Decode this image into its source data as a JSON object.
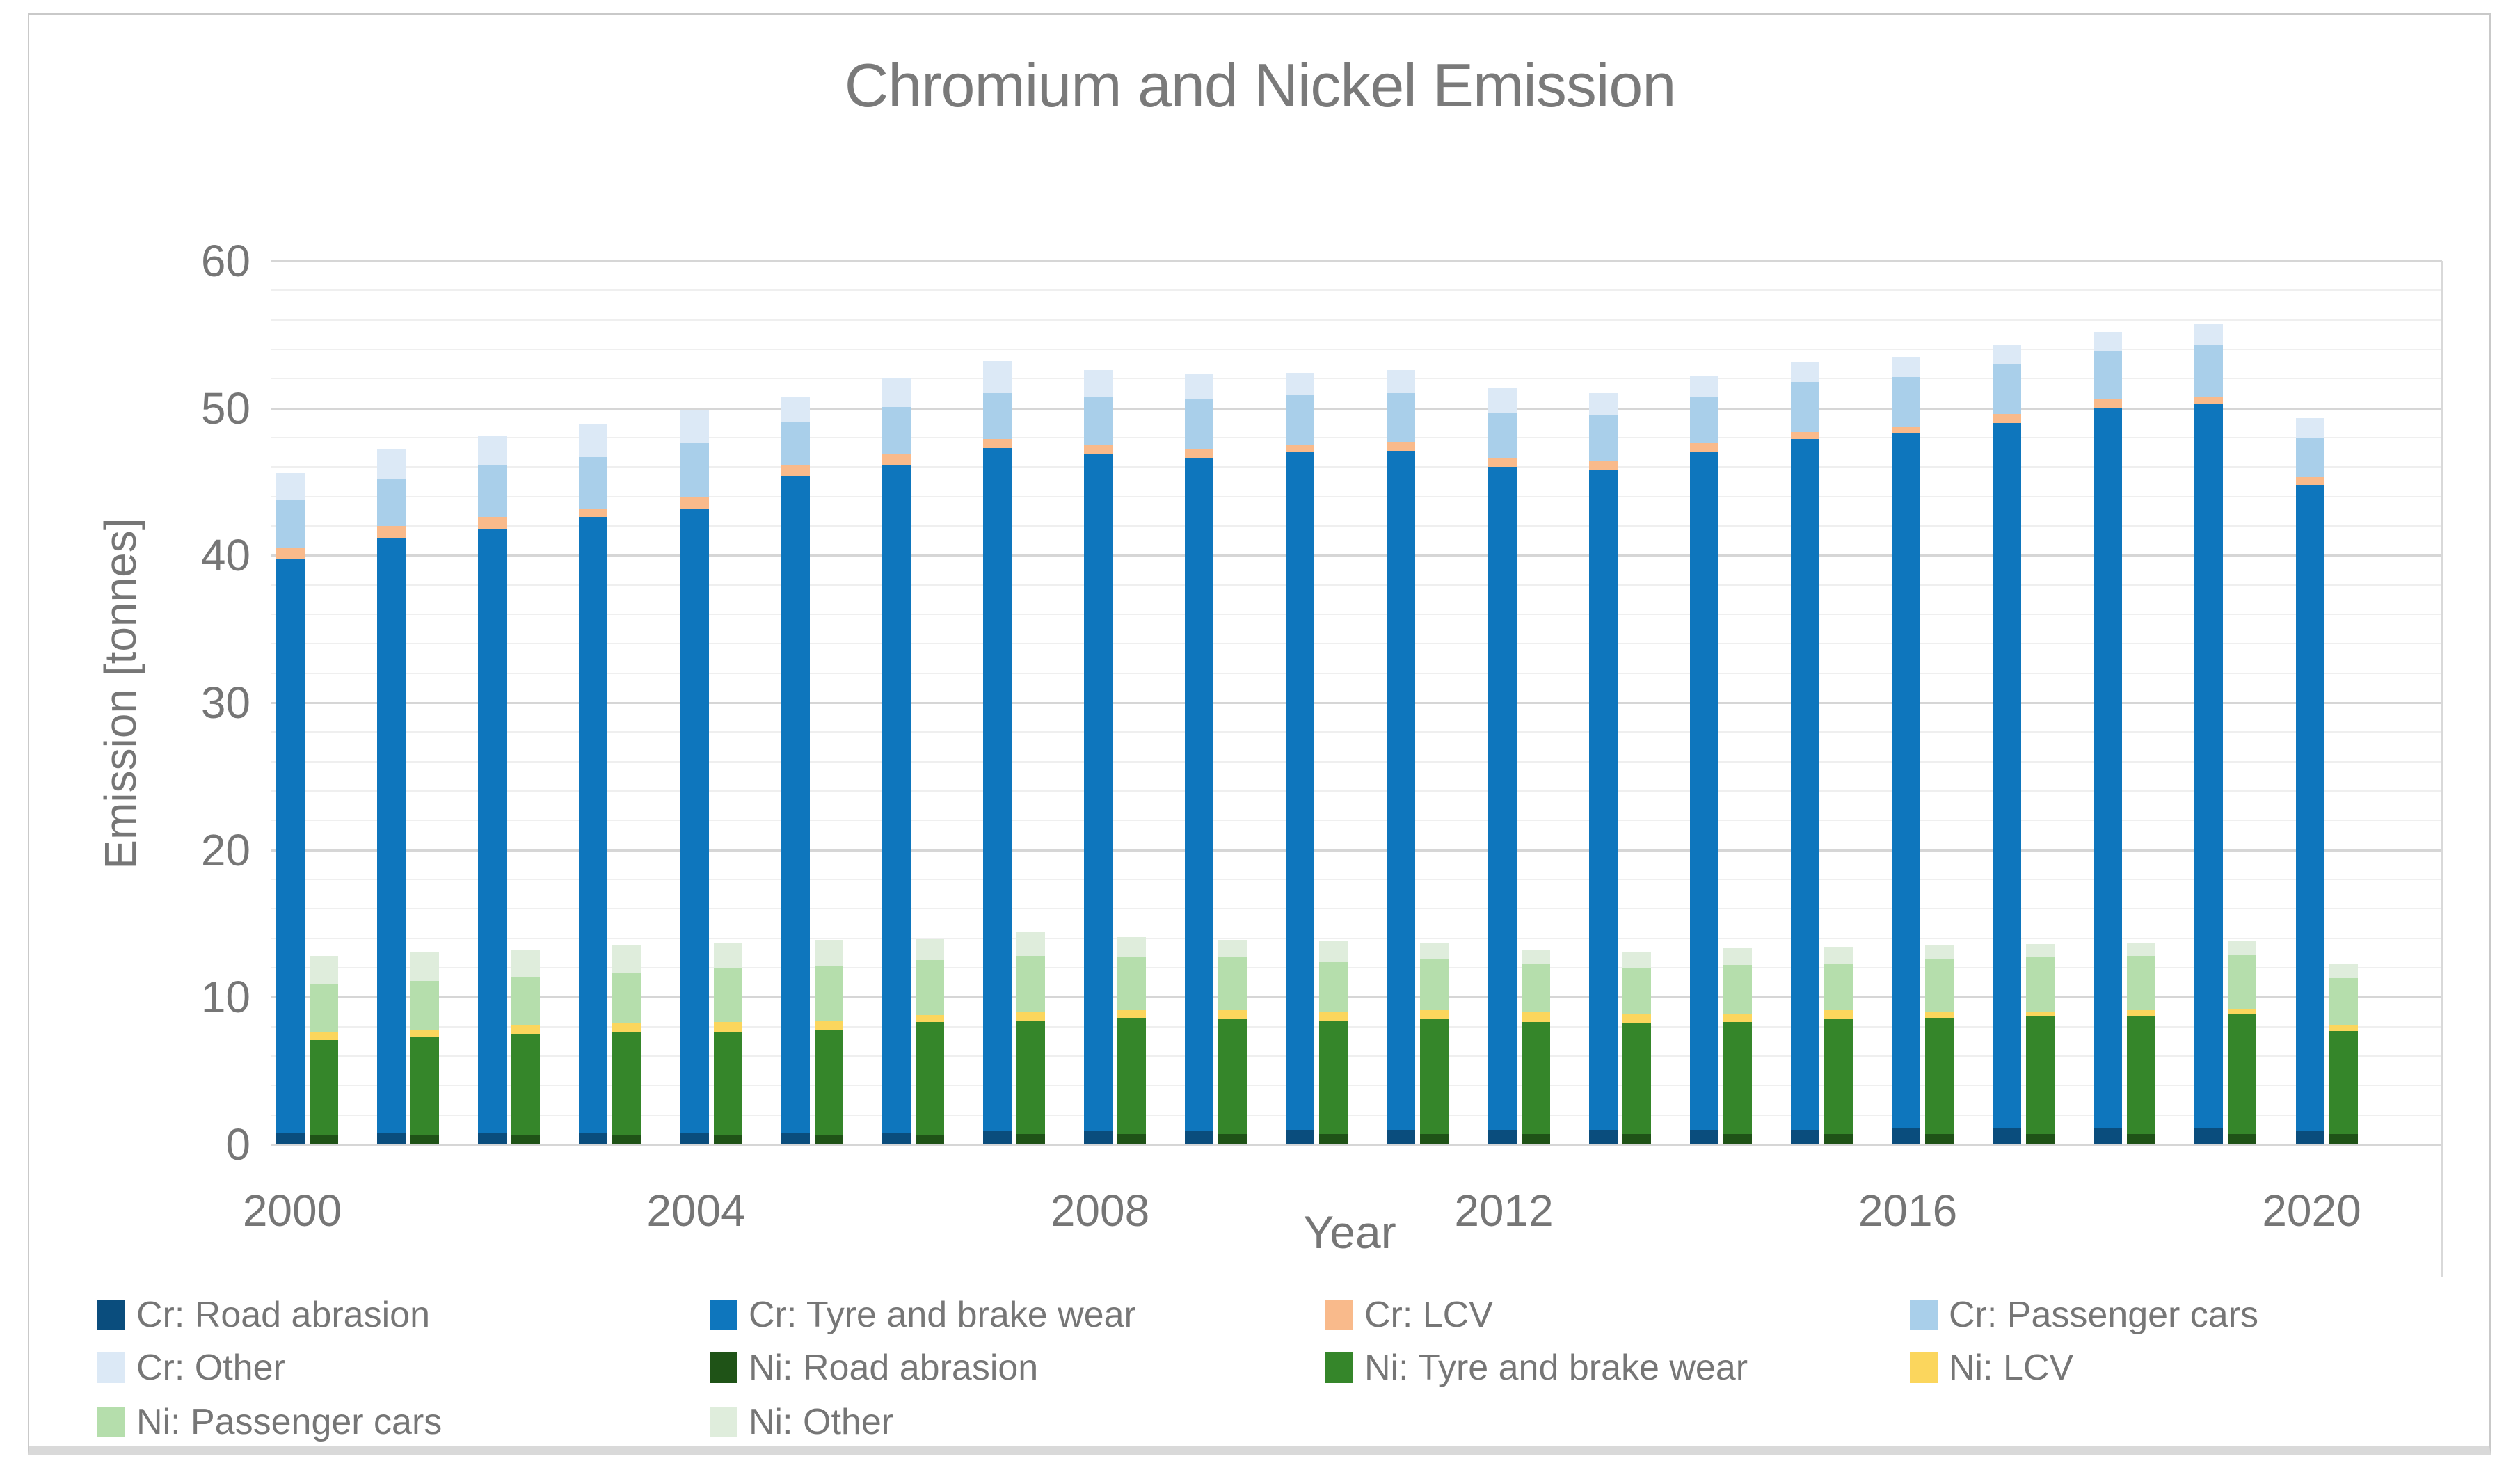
{
  "title": "Chromium and Nickel Emission",
  "y_axis": {
    "label": "Emission [tonnes]",
    "ticks": [
      0,
      10,
      20,
      30,
      40,
      50,
      60
    ],
    "minor_step": 2
  },
  "x_axis": {
    "label": "Year",
    "tick_years": [
      2000,
      2004,
      2008,
      2012,
      2016,
      2020
    ]
  },
  "colors": {
    "cr_road": "#0a4d7d",
    "cr_tyre": "#0e76bd",
    "cr_lcv": "#f9ba8b",
    "cr_passenger": "#a9cfea",
    "cr_other": "#dce9f6",
    "ni_road": "#1f5317",
    "ni_tyre": "#35862a",
    "ni_lcv": "#fbd65d",
    "ni_passenger": "#b5deac",
    "ni_other": "#dfeddc",
    "text_gray": "#767676",
    "grid_major": "#d6d6d6",
    "grid_minor": "#efefef"
  },
  "legend": [
    {
      "label": "Cr: Road abrasion",
      "color_key": "cr_road",
      "col": 0,
      "row": 0
    },
    {
      "label": "Cr: Tyre and brake wear",
      "color_key": "cr_tyre",
      "col": 1,
      "row": 0
    },
    {
      "label": "Cr: LCV",
      "color_key": "cr_lcv",
      "col": 2,
      "row": 0
    },
    {
      "label": "Cr: Passenger cars",
      "color_key": "cr_passenger",
      "col": 3,
      "row": 0
    },
    {
      "label": "Cr: Other",
      "color_key": "cr_other",
      "col": 0,
      "row": 1
    },
    {
      "label": "Ni: Road abrasion",
      "color_key": "ni_road",
      "col": 1,
      "row": 1
    },
    {
      "label": "Ni: Tyre and brake wear",
      "color_key": "ni_tyre",
      "col": 2,
      "row": 1
    },
    {
      "label": "Ni: LCV",
      "color_key": "ni_lcv",
      "col": 3,
      "row": 1
    },
    {
      "label": "Ni: Passenger cars",
      "color_key": "ni_passenger",
      "col": 0,
      "row": 2
    },
    {
      "label": "Ni: Other",
      "color_key": "ni_other",
      "col": 1,
      "row": 2
    }
  ],
  "chart_data": {
    "type": "bar",
    "stacked": true,
    "grouped_by": "year, two stacked bars per year (Cr and Ni)",
    "title": "Chromium and Nickel Emission",
    "xlabel": "Year",
    "ylabel": "Emission [tonnes]",
    "ylim": [
      0,
      60
    ],
    "grid": true,
    "legend_position": "bottom",
    "x": [
      2000,
      2001,
      2002,
      2003,
      2004,
      2005,
      2006,
      2007,
      2008,
      2009,
      2010,
      2011,
      2012,
      2013,
      2014,
      2015,
      2016,
      2017,
      2018,
      2019,
      2020
    ],
    "series": [
      {
        "name": "Cr: Road abrasion",
        "bar": "Cr",
        "color_key": "cr_road",
        "values": [
          0.8,
          0.8,
          0.8,
          0.8,
          0.8,
          0.8,
          0.8,
          0.9,
          0.9,
          0.9,
          1.0,
          1.0,
          1.0,
          1.0,
          1.0,
          1.0,
          1.1,
          1.1,
          1.1,
          1.1,
          0.9
        ]
      },
      {
        "name": "Cr: Tyre and brake wear",
        "bar": "Cr",
        "color_key": "cr_tyre",
        "values": [
          39.0,
          40.4,
          41.0,
          41.8,
          42.4,
          44.6,
          45.3,
          46.4,
          46.0,
          45.7,
          46.0,
          46.1,
          45.0,
          44.8,
          46.0,
          46.9,
          47.2,
          47.9,
          48.9,
          49.2,
          43.9
        ]
      },
      {
        "name": "Cr: LCV",
        "bar": "Cr",
        "color_key": "cr_lcv",
        "values": [
          0.7,
          0.8,
          0.8,
          0.6,
          0.8,
          0.7,
          0.8,
          0.6,
          0.6,
          0.6,
          0.5,
          0.6,
          0.6,
          0.6,
          0.6,
          0.5,
          0.4,
          0.6,
          0.6,
          0.5,
          0.5
        ]
      },
      {
        "name": "Cr: Passenger cars",
        "bar": "Cr",
        "color_key": "cr_passenger",
        "values": [
          3.3,
          3.2,
          3.5,
          3.5,
          3.6,
          3.0,
          3.2,
          3.1,
          3.3,
          3.4,
          3.4,
          3.3,
          3.1,
          3.1,
          3.2,
          3.4,
          3.4,
          3.4,
          3.3,
          3.5,
          2.7
        ]
      },
      {
        "name": "Cr: Other",
        "bar": "Cr",
        "color_key": "cr_other",
        "values": [
          1.8,
          2.0,
          2.0,
          2.2,
          2.3,
          1.7,
          1.9,
          2.2,
          1.8,
          1.7,
          1.5,
          1.6,
          1.7,
          1.5,
          1.4,
          1.3,
          1.4,
          1.3,
          1.3,
          1.4,
          1.3
        ]
      },
      {
        "name": "Ni: Road abrasion",
        "bar": "Ni",
        "color_key": "ni_road",
        "values": [
          0.6,
          0.6,
          0.6,
          0.6,
          0.6,
          0.6,
          0.6,
          0.7,
          0.7,
          0.7,
          0.7,
          0.7,
          0.7,
          0.7,
          0.7,
          0.7,
          0.7,
          0.7,
          0.7,
          0.7,
          0.7
        ]
      },
      {
        "name": "Ni: Tyre and brake wear",
        "bar": "Ni",
        "color_key": "ni_tyre",
        "values": [
          6.5,
          6.7,
          6.9,
          7.0,
          7.0,
          7.2,
          7.7,
          7.7,
          7.9,
          7.8,
          7.7,
          7.8,
          7.6,
          7.5,
          7.6,
          7.8,
          7.9,
          8.0,
          8.0,
          8.2,
          7.0
        ]
      },
      {
        "name": "Ni: LCV",
        "bar": "Ni",
        "color_key": "ni_lcv",
        "values": [
          0.5,
          0.5,
          0.6,
          0.6,
          0.7,
          0.6,
          0.5,
          0.6,
          0.5,
          0.6,
          0.6,
          0.6,
          0.7,
          0.7,
          0.6,
          0.6,
          0.4,
          0.3,
          0.4,
          0.3,
          0.4
        ]
      },
      {
        "name": "Ni: Passenger cars",
        "bar": "Ni",
        "color_key": "ni_passenger",
        "values": [
          3.3,
          3.3,
          3.3,
          3.4,
          3.7,
          3.7,
          3.7,
          3.8,
          3.6,
          3.6,
          3.4,
          3.5,
          3.3,
          3.1,
          3.3,
          3.2,
          3.6,
          3.7,
          3.7,
          3.7,
          3.2
        ]
      },
      {
        "name": "Ni: Other",
        "bar": "Ni",
        "color_key": "ni_other",
        "values": [
          1.9,
          2.0,
          1.8,
          1.9,
          1.7,
          1.8,
          1.5,
          1.6,
          1.4,
          1.2,
          1.4,
          1.1,
          0.9,
          1.1,
          1.1,
          1.1,
          0.9,
          0.9,
          0.9,
          0.9,
          1.0
        ]
      }
    ]
  }
}
